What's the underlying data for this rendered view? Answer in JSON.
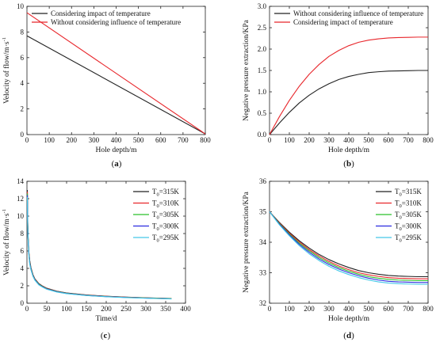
{
  "chart_data": [
    {
      "type": "line",
      "panel": "(a)",
      "panel_letter": "a",
      "xlabel": "Hole depth/m",
      "ylabel_main": "Velocity of flow/m·s",
      "ylabel_sup": "-1",
      "xlim": [
        0,
        800
      ],
      "ylim": [
        0,
        10
      ],
      "xticks": [
        0,
        100,
        200,
        300,
        400,
        500,
        600,
        700,
        800
      ],
      "yticks": [
        0,
        2,
        4,
        6,
        8,
        10
      ],
      "legend_position": "top-left",
      "series": [
        {
          "name": "Considering impact of temperature",
          "color": "#222222",
          "x": [
            0,
            800
          ],
          "y": [
            7.7,
            0.05
          ]
        },
        {
          "name": "Without considering influence of temperature",
          "color": "#e8262b",
          "x": [
            0,
            800
          ],
          "y": [
            9.5,
            0.05
          ]
        }
      ]
    },
    {
      "type": "line",
      "panel": "(b)",
      "panel_letter": "b",
      "xlabel": "Hole depth/m",
      "ylabel_main": "Negative pressure extraction/KPa",
      "ylabel_sup": "",
      "xlim": [
        0,
        800
      ],
      "ylim": [
        0,
        3.0
      ],
      "xticks": [
        0,
        100,
        200,
        300,
        400,
        500,
        600,
        700,
        800
      ],
      "yticks": [
        0.0,
        0.5,
        1.0,
        1.5,
        2.0,
        2.5,
        3.0
      ],
      "legend_position": "top-left",
      "series": [
        {
          "name": "Without considering influence of temperature",
          "color": "#222222",
          "x": [
            0,
            50,
            100,
            150,
            200,
            250,
            300,
            350,
            400,
            450,
            500,
            550,
            600,
            650,
            700,
            750,
            800
          ],
          "y": [
            0,
            0.27,
            0.52,
            0.74,
            0.92,
            1.07,
            1.19,
            1.29,
            1.36,
            1.41,
            1.45,
            1.47,
            1.485,
            1.49,
            1.495,
            1.5,
            1.5
          ]
        },
        {
          "name": "Considering impact of temperature",
          "color": "#e8262b",
          "x": [
            0,
            50,
            100,
            150,
            200,
            250,
            300,
            350,
            400,
            450,
            500,
            550,
            600,
            650,
            700,
            750,
            800
          ],
          "y": [
            0,
            0.42,
            0.8,
            1.13,
            1.41,
            1.64,
            1.83,
            1.97,
            2.08,
            2.16,
            2.21,
            2.24,
            2.26,
            2.27,
            2.275,
            2.28,
            2.28
          ]
        }
      ]
    },
    {
      "type": "line",
      "panel": "(c)",
      "panel_letter": "c",
      "xlabel": "Time/d",
      "ylabel_main": "Velocity of flow/m·s",
      "ylabel_sup": "-1",
      "xlim": [
        0,
        400
      ],
      "ylim": [
        0,
        14
      ],
      "xticks": [
        0,
        50,
        100,
        150,
        200,
        250,
        300,
        350,
        400
      ],
      "yticks": [
        0,
        2,
        4,
        6,
        8,
        10,
        12,
        14
      ],
      "legend_position": "top-right",
      "x": [
        1,
        2,
        3,
        5,
        7,
        10,
        15,
        20,
        30,
        40,
        50,
        75,
        100,
        150,
        200,
        250,
        300,
        365
      ],
      "series": [
        {
          "name": "T",
          "sub": "0",
          "suffix": "=315K",
          "color": "#222222",
          "y": [
            13.0,
            9.4,
            7.6,
            5.8,
            4.9,
            4.1,
            3.3,
            2.8,
            2.25,
            1.95,
            1.72,
            1.38,
            1.18,
            0.95,
            0.8,
            0.7,
            0.62,
            0.54
          ]
        },
        {
          "name": "T",
          "sub": "0",
          "suffix": "=310K",
          "color": "#e8262b",
          "y": [
            12.8,
            9.2,
            7.5,
            5.7,
            4.8,
            4.0,
            3.25,
            2.76,
            2.21,
            1.92,
            1.69,
            1.36,
            1.16,
            0.93,
            0.79,
            0.69,
            0.61,
            0.53
          ]
        },
        {
          "name": "T",
          "sub": "0",
          "suffix": "=305K",
          "color": "#2bc02b",
          "y": [
            12.6,
            9.0,
            7.4,
            5.6,
            4.7,
            3.95,
            3.2,
            2.72,
            2.18,
            1.89,
            1.66,
            1.34,
            1.14,
            0.91,
            0.77,
            0.67,
            0.6,
            0.52
          ]
        },
        {
          "name": "T",
          "sub": "0",
          "suffix": "=300K",
          "color": "#2b2be0",
          "y": [
            12.4,
            8.9,
            7.3,
            5.5,
            4.6,
            3.9,
            3.15,
            2.68,
            2.14,
            1.86,
            1.63,
            1.31,
            1.12,
            0.89,
            0.76,
            0.66,
            0.58,
            0.5
          ]
        },
        {
          "name": "T",
          "sub": "0",
          "suffix": "=295K",
          "color": "#43c8e8",
          "y": [
            12.2,
            8.8,
            7.2,
            5.4,
            4.5,
            3.85,
            3.1,
            2.64,
            2.1,
            1.83,
            1.6,
            1.29,
            1.1,
            0.88,
            0.74,
            0.64,
            0.57,
            0.49
          ]
        }
      ]
    },
    {
      "type": "line",
      "panel": "(d)",
      "panel_letter": "d",
      "xlabel": "Hole depth/m",
      "ylabel_main": "Negative pressure extraction/KPa",
      "ylabel_sup": "",
      "xlim": [
        0,
        800
      ],
      "ylim": [
        32,
        36
      ],
      "xticks": [
        0,
        100,
        200,
        300,
        400,
        500,
        600,
        700,
        800
      ],
      "yticks": [
        32,
        33,
        34,
        35,
        36
      ],
      "legend_position": "top-right",
      "x": [
        0,
        50,
        100,
        150,
        200,
        250,
        300,
        350,
        400,
        450,
        500,
        550,
        600,
        650,
        700,
        750,
        800
      ],
      "series": [
        {
          "name": "T",
          "sub": "0",
          "suffix": "=315K",
          "color": "#222222",
          "y": [
            35.0,
            34.65,
            34.33,
            34.05,
            33.81,
            33.6,
            33.43,
            33.29,
            33.17,
            33.07,
            33.0,
            32.95,
            32.91,
            32.89,
            32.88,
            32.87,
            32.87
          ]
        },
        {
          "name": "T",
          "sub": "0",
          "suffix": "=310K",
          "color": "#e8262b",
          "y": [
            35.0,
            34.63,
            34.3,
            34.01,
            33.76,
            33.55,
            33.37,
            33.22,
            33.1,
            33.0,
            32.93,
            32.88,
            32.84,
            32.82,
            32.81,
            32.8,
            32.8
          ]
        },
        {
          "name": "T",
          "sub": "0",
          "suffix": "=305K",
          "color": "#2bc02b",
          "y": [
            35.0,
            34.61,
            34.27,
            33.97,
            33.72,
            33.5,
            33.32,
            33.17,
            33.05,
            32.95,
            32.87,
            32.82,
            32.78,
            32.76,
            32.75,
            32.74,
            32.74
          ]
        },
        {
          "name": "T",
          "sub": "0",
          "suffix": "=300K",
          "color": "#2b2be0",
          "y": [
            35.0,
            34.59,
            34.24,
            33.93,
            33.67,
            33.45,
            33.27,
            33.12,
            33.0,
            32.9,
            32.82,
            32.76,
            32.72,
            32.7,
            32.69,
            32.68,
            32.68
          ]
        },
        {
          "name": "T",
          "sub": "0",
          "suffix": "=295K",
          "color": "#43c8e8",
          "y": [
            35.0,
            34.57,
            34.21,
            33.89,
            33.62,
            33.4,
            33.21,
            33.06,
            32.94,
            32.84,
            32.76,
            32.7,
            32.66,
            32.64,
            32.63,
            32.62,
            32.62
          ]
        }
      ]
    }
  ]
}
